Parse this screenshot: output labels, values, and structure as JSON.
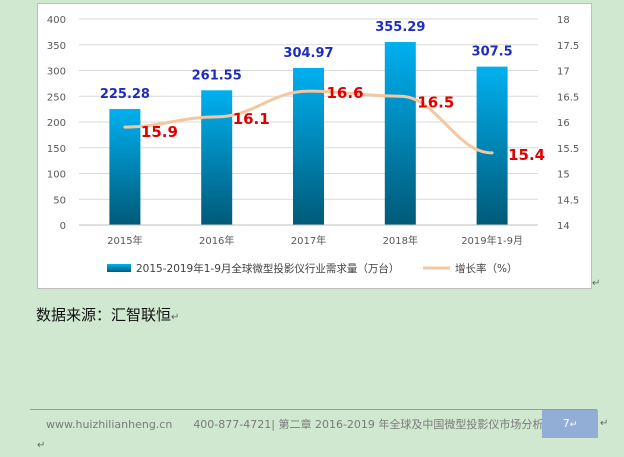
{
  "source": "数据来源：汇智联恒",
  "footer": {
    "website": "www.huizhilianheng.cn",
    "phone": "400-877-4721",
    "chapter": "第二章 2016-2019 年全球及中国微型投影仪市场分析",
    "page": "7"
  },
  "colors": {
    "bar_top": "#00b0f0",
    "bar_bottom": "#005a78",
    "line": "#f4c7a1",
    "bar_label": "#1f2dbd",
    "line_label": "#e00000",
    "background": "#cfe8cf"
  },
  "chart_data": {
    "type": "bar",
    "categories": [
      "2015年",
      "2016年",
      "2017年",
      "2018年",
      "2019年1-9月"
    ],
    "series": [
      {
        "name": "2015-2019年1-9月全球微型投影仪行业需求量（万台）",
        "type": "bar",
        "axis": "left",
        "values": [
          225.28,
          261.55,
          304.97,
          355.29,
          307.5
        ],
        "labels": [
          "225.28",
          "261.55",
          "304.97",
          "355.29",
          "307.5"
        ]
      },
      {
        "name": "增长率（%）",
        "type": "line",
        "axis": "right",
        "values": [
          15.9,
          16.1,
          16.6,
          16.5,
          15.4
        ],
        "labels": [
          "15.9",
          "16.1",
          "16.6",
          "16.5",
          "15.4"
        ]
      }
    ],
    "y_left": {
      "ylim": [
        0,
        400
      ],
      "ticks": [
        "0",
        "50",
        "100",
        "150",
        "200",
        "250",
        "300",
        "350",
        "400"
      ]
    },
    "y_right": {
      "ylim": [
        14,
        18
      ],
      "ticks": [
        "14",
        "14.5",
        "15",
        "15.5",
        "16",
        "16.5",
        "17",
        "17.5",
        "18"
      ]
    },
    "grid": true,
    "legend": "bottom"
  }
}
